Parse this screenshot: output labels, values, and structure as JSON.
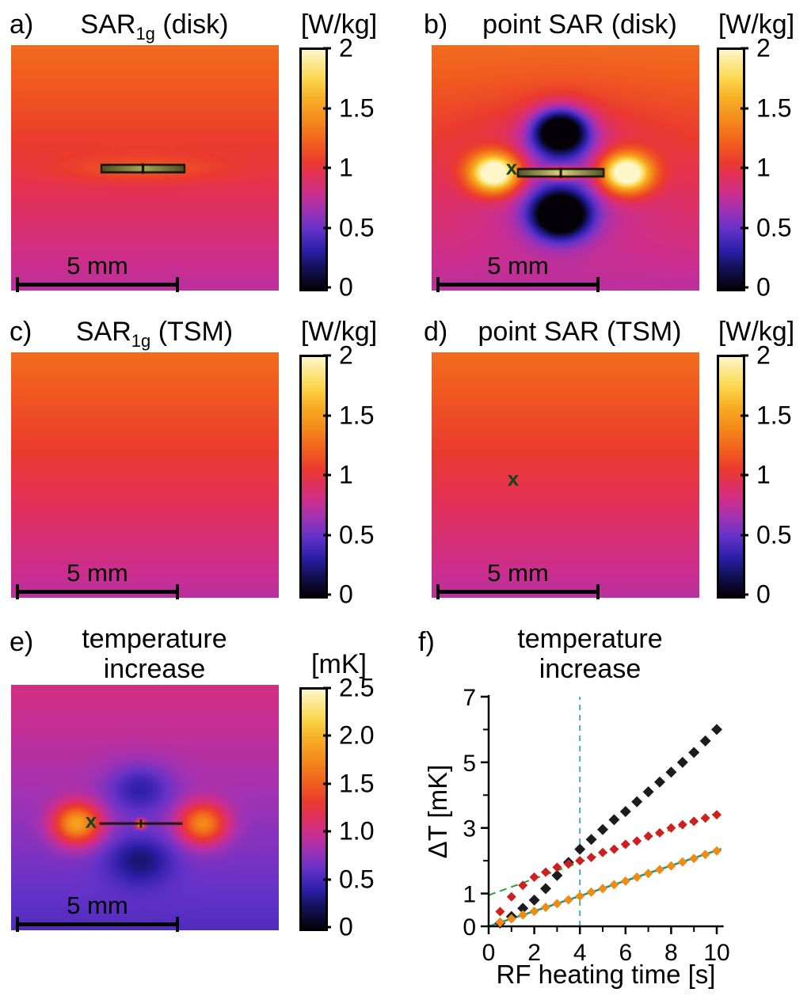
{
  "panels": {
    "a": {
      "label": "a)",
      "title_main": "SAR",
      "title_sub": "1g",
      "title_tail": " (disk)",
      "colorbar_unit": "[W/kg]",
      "colorbar_ticks": [
        "2",
        "1.5",
        "1",
        "0.5",
        "0"
      ],
      "scalebar_label": "5 mm"
    },
    "b": {
      "label": "b)",
      "title": "point SAR (disk)",
      "colorbar_unit": "[W/kg]",
      "colorbar_ticks": [
        "2",
        "1.5",
        "1",
        "0.5",
        "0"
      ],
      "scalebar_label": "5 mm",
      "marker": "x"
    },
    "c": {
      "label": "c)",
      "title_main": "SAR",
      "title_sub": "1g",
      "title_tail": " (TSM)",
      "colorbar_unit": "[W/kg]",
      "colorbar_ticks": [
        "2",
        "1.5",
        "1",
        "0.5",
        "0"
      ],
      "scalebar_label": "5 mm"
    },
    "d": {
      "label": "d)",
      "title": "point SAR (TSM)",
      "colorbar_unit": "[W/kg]",
      "colorbar_ticks": [
        "2",
        "1.5",
        "1",
        "0.5",
        "0"
      ],
      "scalebar_label": "5 mm",
      "marker": "x"
    },
    "e": {
      "label": "e)",
      "title_line1": "temperature",
      "title_line2": "increase",
      "colorbar_unit": "[mK]",
      "colorbar_ticks": [
        "2.5",
        "2.0",
        "1.5",
        "1.0",
        "0.5",
        "0"
      ],
      "scalebar_label": "5 mm",
      "marker": "x"
    },
    "f": {
      "label": "f)",
      "title_line1": "temperature",
      "title_line2": "increase",
      "xlabel": "RF heating time [s]",
      "ylabel": "ΔT [mK]"
    }
  },
  "colormap": [
    [
      0.0,
      "#050008"
    ],
    [
      0.08,
      "#10104e"
    ],
    [
      0.16,
      "#2a1ea6"
    ],
    [
      0.25,
      "#6432c8"
    ],
    [
      0.33,
      "#a032b4"
    ],
    [
      0.4,
      "#cc2e8e"
    ],
    [
      0.475,
      "#e23158"
    ],
    [
      0.53,
      "#ea3a30"
    ],
    [
      0.6,
      "#f05a20"
    ],
    [
      0.7,
      "#f4871a"
    ],
    [
      0.8,
      "#f7b026"
    ],
    [
      0.88,
      "#fad84e"
    ],
    [
      1.0,
      "#fdf6c8"
    ]
  ],
  "chart_data": [
    {
      "id": "a",
      "type": "heatmap",
      "title": "SAR_1g (disk)",
      "value_unit": "W/kg",
      "vmax": 2,
      "colorbar_ticks": [
        2,
        1.5,
        1,
        0.5,
        0
      ],
      "background": {
        "top_value": 1.28,
        "bottom_value": 0.74
      },
      "lobes": [
        {
          "amp": 0.18,
          "cx": 0.49,
          "cy": 0.503,
          "sx": 0.2,
          "sy": 0.035
        }
      ],
      "disk": {
        "x0": 0.34,
        "x1": 0.645,
        "y": 0.503,
        "h": 7,
        "fill": [
          "#4f4f26",
          "#a8a858"
        ]
      },
      "scale_bar": "5 mm"
    },
    {
      "id": "b",
      "type": "heatmap",
      "title": "point SAR (disk)",
      "value_unit": "W/kg",
      "vmax": 2,
      "colorbar_ticks": [
        2,
        1.5,
        1,
        0.5,
        0
      ],
      "background": {
        "top_value": 1.28,
        "bottom_value": 0.74
      },
      "lobes": [
        {
          "amp": -0.35,
          "cx": 0.48,
          "cy": 0.52,
          "sx": 0.21,
          "sy": 0.17
        },
        {
          "amp": 1.5,
          "cx": 0.235,
          "cy": 0.52,
          "sx": 0.066,
          "sy": 0.056
        },
        {
          "amp": 1.5,
          "cx": 0.725,
          "cy": 0.52,
          "sx": 0.066,
          "sy": 0.056
        },
        {
          "amp": -1.3,
          "cx": 0.48,
          "cy": 0.35,
          "sx": 0.075,
          "sy": 0.066
        },
        {
          "amp": -1.3,
          "cx": 0.48,
          "cy": 0.69,
          "sx": 0.075,
          "sy": 0.066
        },
        {
          "amp": 1.0,
          "cx": 0.4825,
          "cy": 0.52,
          "sx": 0.05,
          "sy": 0.016
        }
      ],
      "disk": {
        "x0": 0.325,
        "x1": 0.64,
        "y": 0.52,
        "h": 7,
        "fill": [
          "#55552a",
          "#ddd27a"
        ]
      },
      "marker": {
        "glyph": "x",
        "x": 0.3,
        "y": 0.5
      },
      "scale_bar": "5 mm"
    },
    {
      "id": "c",
      "type": "heatmap",
      "title": "SAR_1g (TSM)",
      "value_unit": "W/kg",
      "vmax": 2,
      "colorbar_ticks": [
        2,
        1.5,
        1,
        0.5,
        0
      ],
      "background": {
        "top_value": 1.28,
        "bottom_value": 0.74
      },
      "lobes": [],
      "scale_bar": "5 mm"
    },
    {
      "id": "d",
      "type": "heatmap",
      "title": "point SAR (TSM)",
      "value_unit": "W/kg",
      "vmax": 2,
      "colorbar_ticks": [
        2,
        1.5,
        1,
        0.5,
        0
      ],
      "background": {
        "top_value": 1.28,
        "bottom_value": 0.74
      },
      "lobes": [],
      "marker": {
        "glyph": "x",
        "x": 0.305,
        "y": 0.515
      },
      "scale_bar": "5 mm"
    },
    {
      "id": "e",
      "type": "heatmap",
      "title": "temperature increase",
      "value_unit": "mK",
      "vmax": 2.5,
      "colorbar_ticks": [
        2.5,
        2.0,
        1.5,
        1.0,
        0.5,
        0
      ],
      "background": {
        "top_value": 1.05,
        "bottom_value": 0.55
      },
      "lobes": [
        {
          "amp": 1.15,
          "cx": 0.245,
          "cy": 0.565,
          "sx": 0.062,
          "sy": 0.058
        },
        {
          "amp": 1.0,
          "cx": 0.715,
          "cy": 0.565,
          "sx": 0.062,
          "sy": 0.058
        },
        {
          "amp": -0.42,
          "cx": 0.48,
          "cy": 0.42,
          "sx": 0.085,
          "sy": 0.07
        },
        {
          "amp": -0.42,
          "cx": 0.48,
          "cy": 0.71,
          "sx": 0.085,
          "sy": 0.07
        },
        {
          "amp": 1.9,
          "cx": 0.4825,
          "cy": 0.565,
          "sx": 0.011,
          "sy": 0.011
        }
      ],
      "disk": {
        "x0": 0.33,
        "x1": 0.64,
        "y": 0.565,
        "h": 3,
        "fill": null
      },
      "marker": {
        "glyph": "x",
        "x": 0.3,
        "y": 0.555
      },
      "scale_bar": "5 mm"
    },
    {
      "id": "f",
      "type": "scatter",
      "title": "temperature increase",
      "xlabel": "RF heating time [s]",
      "ylabel": "ΔT [mK]",
      "xlim": [
        0,
        10.3
      ],
      "ylim": [
        0,
        7.05
      ],
      "xticks": [
        {
          "v": 0,
          "label": "0"
        },
        {
          "v": 2,
          "label": "2"
        },
        {
          "v": 4,
          "label": "4"
        },
        {
          "v": 6,
          "label": "6"
        },
        {
          "v": 8,
          "label": "8"
        },
        {
          "v": 10,
          "label": "10"
        }
      ],
      "xticks_minor": [
        1,
        3,
        5,
        7,
        9
      ],
      "yticks": [
        {
          "v": 0,
          "label": "0"
        },
        {
          "v": 1,
          "label": "1"
        },
        {
          "v": 3,
          "label": "3"
        },
        {
          "v": 5,
          "label": "5"
        },
        {
          "v": 7,
          "label": "7"
        }
      ],
      "yticks_minor": [
        2,
        4,
        6
      ],
      "series": [
        {
          "name": "black",
          "color": "#1c1c1c",
          "size": 7,
          "x": [
            0.5,
            1,
            1.5,
            2,
            2.5,
            3,
            3.5,
            4,
            4.5,
            5,
            5.5,
            6,
            6.5,
            7,
            7.5,
            8,
            8.5,
            9,
            9.5,
            10
          ],
          "y": [
            0.1,
            0.3,
            0.55,
            0.8,
            1.15,
            1.55,
            1.95,
            2.35,
            2.65,
            2.95,
            3.25,
            3.5,
            3.8,
            4.1,
            4.4,
            4.7,
            5.0,
            5.3,
            5.65,
            6.0
          ]
        },
        {
          "name": "red",
          "color": "#cf1f1f",
          "size": 6,
          "x": [
            0.5,
            1,
            1.5,
            2,
            2.5,
            3,
            3.5,
            4,
            4.5,
            5,
            5.5,
            6,
            6.5,
            7,
            7.5,
            8,
            8.5,
            9,
            9.5,
            10
          ],
          "y": [
            0.45,
            0.9,
            1.25,
            1.5,
            1.65,
            1.8,
            1.9,
            2.0,
            2.1,
            2.25,
            2.35,
            2.5,
            2.6,
            2.75,
            2.85,
            3.0,
            3.1,
            3.2,
            3.3,
            3.4
          ]
        },
        {
          "name": "orange",
          "color": "#ef8c14",
          "size": 6,
          "x": [
            0.5,
            1,
            1.5,
            2,
            2.5,
            3,
            3.5,
            4,
            4.5,
            5,
            5.5,
            6,
            6.5,
            7,
            7.5,
            8,
            8.5,
            9,
            9.5,
            10
          ],
          "y": [
            0.12,
            0.23,
            0.35,
            0.46,
            0.58,
            0.69,
            0.81,
            0.92,
            1.04,
            1.15,
            1.27,
            1.38,
            1.5,
            1.61,
            1.73,
            1.84,
            1.96,
            2.07,
            2.19,
            2.3
          ]
        }
      ],
      "lines": [
        {
          "name": "green-dashed-fit",
          "color": "#2f9e41",
          "width": 2,
          "dash": "9 6",
          "x1": 0,
          "y1": 0.95,
          "x2": 10.2,
          "y2": 3.5
        },
        {
          "name": "teal-solid-fit",
          "color": "#129a96",
          "width": 2.5,
          "dash": "",
          "x1": 0,
          "y1": 0,
          "x2": 10.2,
          "y2": 2.36
        },
        {
          "name": "vertical-dashed",
          "color": "#3f9fc4",
          "width": 1.8,
          "dash": "7 6",
          "x1": 4,
          "y1": 0,
          "x2": 4,
          "y2": 7
        }
      ]
    }
  ]
}
